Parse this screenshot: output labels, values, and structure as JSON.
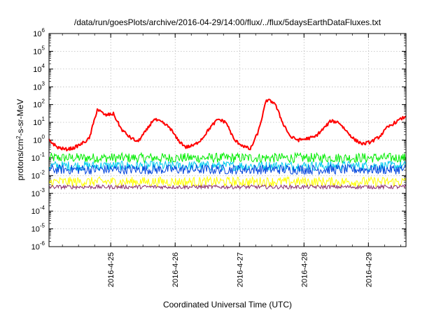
{
  "chart_data": {
    "type": "line",
    "title": "/data/run/goesPlots/archive/2016-04-29/14:00/flux/../flux/5daysEarthDataFluxes.txt",
    "xlabel": "Coordinated Universal Time (UTC)",
    "ylabel": {
      "base": "protons/cm",
      "sup": "2",
      "rest": "-s-sr-MeV"
    },
    "yscale": "log",
    "ylim": [
      1e-06,
      1000000.0
    ],
    "y_ticks": [
      {
        "exp": "-6",
        "value": 1e-06
      },
      {
        "exp": "-5",
        "value": 1e-05
      },
      {
        "exp": "-4",
        "value": 0.0001
      },
      {
        "exp": "-3",
        "value": 0.001
      },
      {
        "exp": "-2",
        "value": 0.01
      },
      {
        "exp": "-1",
        "value": 0.1
      },
      {
        "exp": "0",
        "value": 1
      },
      {
        "exp": "1",
        "value": 10
      },
      {
        "exp": "2",
        "value": 100
      },
      {
        "exp": "3",
        "value": 1000
      },
      {
        "exp": "4",
        "value": 10000
      },
      {
        "exp": "5",
        "value": 100000
      },
      {
        "exp": "6",
        "value": 1000000
      }
    ],
    "xlim": [
      "2016-04-24 01:00",
      "2016-04-29 14:00"
    ],
    "x_ticks": [
      {
        "label": "2016-4-25",
        "value": "2016-04-25 00:00"
      },
      {
        "label": "2016-4-26",
        "value": "2016-04-26 00:00"
      },
      {
        "label": "2016-4-27",
        "value": "2016-04-27 00:00"
      },
      {
        "label": "2016-4-28",
        "value": "2016-04-28 00:00"
      },
      {
        "label": "2016-4-29",
        "value": "2016-04-29 00:00"
      }
    ],
    "grid": true,
    "legend": "none",
    "series": [
      {
        "color": "#ff0000",
        "x": [
          "2016-04-24 01:00",
          "2016-04-24 04:00",
          "2016-04-24 07:00",
          "2016-04-24 10:00",
          "2016-04-24 13:00",
          "2016-04-24 16:00",
          "2016-04-24 19:00",
          "2016-04-24 22:00",
          "2016-04-25 01:00",
          "2016-04-25 04:00",
          "2016-04-25 07:00",
          "2016-04-25 10:00",
          "2016-04-25 13:00",
          "2016-04-25 16:00",
          "2016-04-25 19:00",
          "2016-04-25 22:00",
          "2016-04-26 01:00",
          "2016-04-26 04:00",
          "2016-04-26 07:00",
          "2016-04-26 10:00",
          "2016-04-26 13:00",
          "2016-04-26 16:00",
          "2016-04-26 19:00",
          "2016-04-26 22:00",
          "2016-04-27 01:00",
          "2016-04-27 04:00",
          "2016-04-27 07:00",
          "2016-04-27 10:00",
          "2016-04-27 13:00",
          "2016-04-27 16:00",
          "2016-04-27 19:00",
          "2016-04-27 22:00",
          "2016-04-28 01:00",
          "2016-04-28 04:00",
          "2016-04-28 07:00",
          "2016-04-28 10:00",
          "2016-04-28 13:00",
          "2016-04-28 16:00",
          "2016-04-28 19:00",
          "2016-04-28 22:00",
          "2016-04-29 01:00",
          "2016-04-29 04:00",
          "2016-04-29 07:00",
          "2016-04-29 10:00",
          "2016-04-29 14:00"
        ],
        "y": [
          1.0,
          0.4,
          0.3,
          0.35,
          0.6,
          1.2,
          55,
          25,
          30,
          4,
          1.5,
          0.8,
          3,
          15,
          10,
          5,
          1,
          0.4,
          0.5,
          1.2,
          5,
          15,
          10,
          1,
          0.5,
          0.3,
          3,
          180,
          130,
          10,
          1.5,
          1.0,
          1.2,
          1.5,
          4,
          12,
          10,
          3,
          1.0,
          0.6,
          0.8,
          1.5,
          5,
          10,
          22
        ]
      },
      {
        "color": "#00ee00",
        "level": 0.1
      },
      {
        "color": "#00ccee",
        "level": 0.035
      },
      {
        "color": "#0044dd",
        "level": 0.022
      },
      {
        "color": "#ffff00",
        "level": 0.0045
      },
      {
        "color": "#8b2c6e",
        "level": 0.0023
      }
    ]
  }
}
